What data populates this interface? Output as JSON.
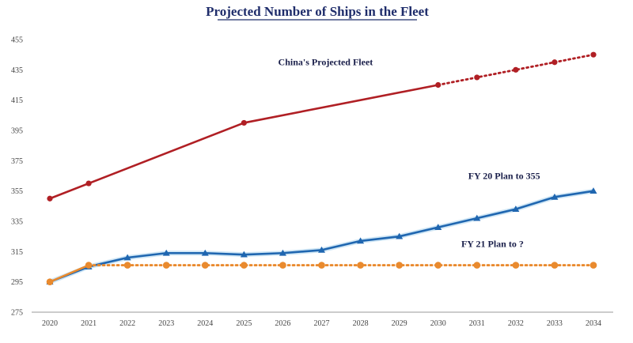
{
  "chart_data": {
    "type": "line",
    "title": "Projected Number of Ships in the Fleet",
    "xlabel": "",
    "ylabel": "",
    "x": [
      2020,
      2021,
      2022,
      2023,
      2024,
      2025,
      2026,
      2027,
      2028,
      2029,
      2030,
      2031,
      2032,
      2033,
      2034
    ],
    "ylim": [
      275,
      455
    ],
    "yticks": [
      275,
      295,
      315,
      335,
      355,
      375,
      395,
      415,
      435,
      455
    ],
    "grid": false,
    "legend": "none",
    "series": [
      {
        "name": "China's Projected Fleet",
        "color": "#b01f24",
        "marker": "circle",
        "x": [
          2020,
          2021,
          2025,
          2030,
          2031,
          2032,
          2033,
          2034
        ],
        "values": [
          350,
          360,
          400,
          425,
          430,
          435,
          440,
          445
        ],
        "projected_from": 2030
      },
      {
        "name": "FY 20 Plan to 355",
        "color": "#1f66b0",
        "marker": "triangle",
        "x": [
          2020,
          2021,
          2022,
          2023,
          2024,
          2025,
          2026,
          2027,
          2028,
          2029,
          2030,
          2031,
          2032,
          2033,
          2034
        ],
        "values": [
          295,
          305,
          311,
          314,
          314,
          313,
          314,
          316,
          322,
          325,
          331,
          337,
          343,
          351,
          355
        ]
      },
      {
        "name": "FY 21 Plan to ?",
        "color": "#e98a2e",
        "marker": "circle",
        "x": [
          2020,
          2021,
          2022,
          2023,
          2024,
          2025,
          2026,
          2027,
          2028,
          2029,
          2030,
          2031,
          2032,
          2033,
          2034
        ],
        "values": [
          295,
          306,
          306,
          306,
          306,
          306,
          306,
          306,
          306,
          306,
          306,
          306,
          306,
          306,
          306
        ],
        "projected_from": 2021
      }
    ],
    "annotations": [
      {
        "text": "China's Projected Fleet",
        "x": 2027.1,
        "y": 438
      },
      {
        "text": "FY 20 Plan to 355",
        "x": 2031.7,
        "y": 363
      },
      {
        "text": "FY 21 Plan to ?",
        "x": 2031.4,
        "y": 318
      }
    ]
  }
}
